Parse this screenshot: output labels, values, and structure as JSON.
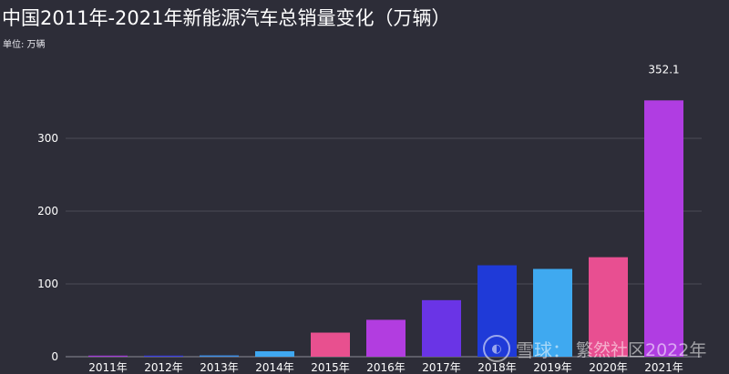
{
  "title": "中国2011年-2021年新能源汽车总销量变化（万辆）",
  "unit_label": "单位: 万辆",
  "watermark": {
    "logo_glyph": "◐",
    "site": "雪球：",
    "author": "繁然社区2022年"
  },
  "chart_data": {
    "type": "bar",
    "categories": [
      "2011年",
      "2012年",
      "2013年",
      "2014年",
      "2015年",
      "2016年",
      "2017年",
      "2018年",
      "2019年",
      "2020年",
      "2021年"
    ],
    "values": [
      0.8,
      1.3,
      1.8,
      7.5,
      33.1,
      50.7,
      77.7,
      125.6,
      120.6,
      136.7,
      352.1
    ],
    "colors": [
      "#a23bd6",
      "#3b3fe0",
      "#3f8fe6",
      "#3fa7f0",
      "#e8508f",
      "#b23de0",
      "#6a34e6",
      "#1f3ad8",
      "#3fa9f0",
      "#e84f91",
      "#b03de2"
    ],
    "data_labels": [
      {
        "index": 10,
        "text": "352.1"
      }
    ],
    "yticks": [
      0,
      100,
      200,
      300
    ],
    "ylim": [
      0,
      400
    ],
    "grid": true,
    "xlabel": "",
    "ylabel": ""
  }
}
